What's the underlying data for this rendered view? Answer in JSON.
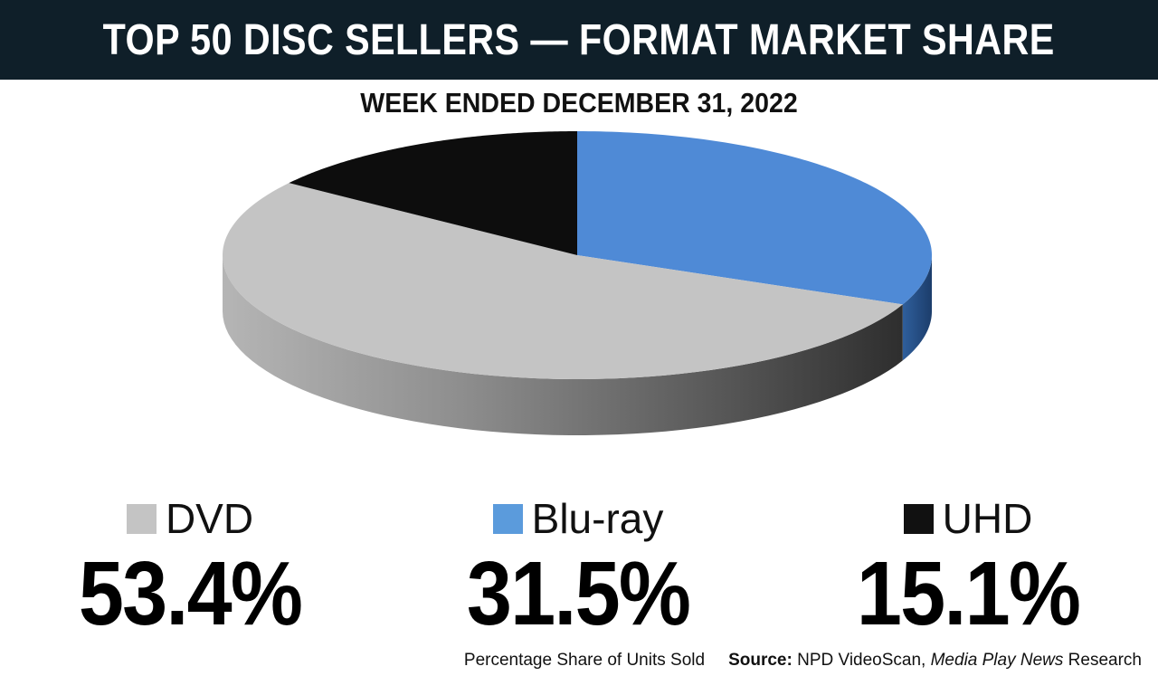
{
  "header": {
    "title": "TOP 50 DISC SELLERS — FORMAT MARKET SHARE",
    "subtitle": "WEEK ENDED DECEMBER 31, 2022"
  },
  "chart_data": {
    "type": "pie",
    "title": "TOP 50 DISC SELLERS — FORMAT MARKET SHARE",
    "subtitle": "WEEK ENDED DECEMBER 31, 2022",
    "categories": [
      "DVD",
      "Blu-ray",
      "UHD"
    ],
    "values": [
      53.4,
      31.5,
      15.1
    ],
    "value_labels": [
      "53.4%",
      "31.5%",
      "15.1%"
    ],
    "colors": [
      "#c4c4c4",
      "#4f8ad6",
      "#0d0d0d"
    ],
    "style": "3d",
    "legend": "bottom"
  },
  "legend": [
    {
      "label": "DVD",
      "value": "53.4%",
      "color": "#c4c4c4"
    },
    {
      "label": "Blu-ray",
      "value": "31.5%",
      "color": "#5b9bdc"
    },
    {
      "label": "UHD",
      "value": "15.1%",
      "color": "#111111"
    }
  ],
  "footer": {
    "note": "Percentage Share of Units Sold",
    "source_label": "Source:",
    "source_text": " NPD VideoScan, ",
    "source_italic": "Media Play News",
    "source_tail": " Research"
  }
}
